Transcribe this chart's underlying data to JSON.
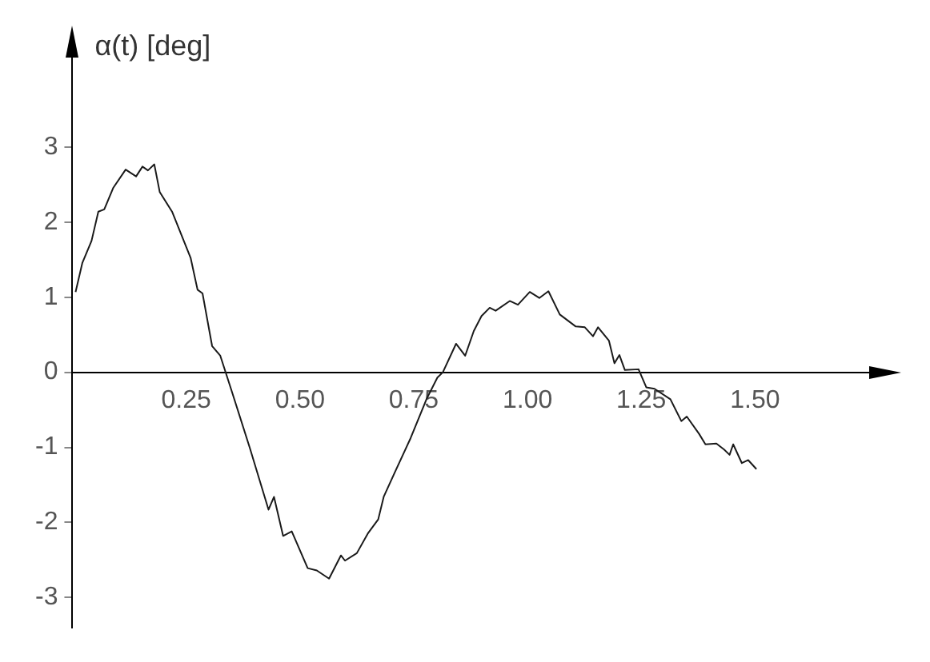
{
  "chart_data": {
    "type": "line",
    "ylabel": "α(t) [deg]",
    "xlim": [
      0,
      1.8
    ],
    "ylim": [
      -3.4,
      4.5
    ],
    "xticks": [
      {
        "value": 0.25,
        "label": "0.25"
      },
      {
        "value": 0.5,
        "label": "0.50"
      },
      {
        "value": 0.75,
        "label": "0.75"
      },
      {
        "value": 1,
        "label": "1.00"
      },
      {
        "value": 1.25,
        "label": "1.25"
      },
      {
        "value": 1.5,
        "label": "1.50"
      }
    ],
    "yticks": [
      -3,
      -2,
      -1,
      0,
      1,
      2,
      3
    ],
    "legend": false,
    "marker": "none",
    "line_style": "solid",
    "series": [
      {
        "color": "#1a1a1a",
        "x": [
          0.007,
          0.022,
          0.042,
          0.057,
          0.07,
          0.09,
          0.117,
          0.14,
          0.154,
          0.166,
          0.18,
          0.192,
          0.219,
          0.26,
          0.275,
          0.286,
          0.307,
          0.325,
          0.349,
          0.39,
          0.431,
          0.443,
          0.463,
          0.482,
          0.517,
          0.537,
          0.564,
          0.59,
          0.599,
          0.625,
          0.649,
          0.672,
          0.684,
          0.708,
          0.743,
          0.778,
          0.802,
          0.814,
          0.843,
          0.863,
          0.882,
          0.899,
          0.917,
          0.93,
          0.961,
          0.979,
          1.005,
          1.026,
          1.046,
          1.071,
          1.106,
          1.126,
          1.144,
          1.155,
          1.179,
          1.191,
          1.202,
          1.214,
          1.244,
          1.261,
          1.279,
          1.314,
          1.338,
          1.35,
          1.377,
          1.391,
          1.415,
          1.432,
          1.444,
          1.452,
          1.471,
          1.485,
          1.503
        ],
        "values": [
          1.07,
          1.46,
          1.75,
          2.14,
          2.17,
          2.46,
          2.7,
          2.61,
          2.74,
          2.69,
          2.77,
          2.4,
          2.14,
          1.52,
          1.1,
          1.05,
          0.35,
          0.22,
          -0.23,
          -1.01,
          -1.83,
          -1.66,
          -2.18,
          -2.12,
          -2.61,
          -2.64,
          -2.75,
          -2.44,
          -2.51,
          -2.41,
          -2.15,
          -1.96,
          -1.66,
          -1.34,
          -0.88,
          -0.36,
          -0.07,
          0,
          0.38,
          0.22,
          0.55,
          0.75,
          0.86,
          0.82,
          0.95,
          0.9,
          1.07,
          0.99,
          1.08,
          0.77,
          0.61,
          0.6,
          0.48,
          0.6,
          0.42,
          0.12,
          0.23,
          0.03,
          0.04,
          -0.2,
          -0.22,
          -0.36,
          -0.65,
          -0.59,
          -0.82,
          -0.96,
          -0.95,
          -1.03,
          -1.1,
          -0.96,
          -1.21,
          -1.17,
          -1.29
        ]
      }
    ]
  }
}
